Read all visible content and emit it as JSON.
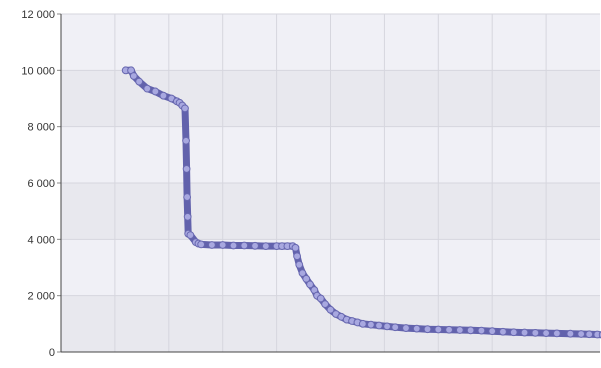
{
  "chart_data": {
    "type": "scatter",
    "title": "",
    "xlabel": "",
    "ylabel": "",
    "ylim": [
      0,
      12000
    ],
    "xlim": [
      0,
      10
    ],
    "y_ticks": [
      "0",
      "2 000",
      "4 000",
      "6 000",
      "8 000",
      "10 000",
      "12 000"
    ],
    "x_tick_labels": [],
    "grid": true,
    "legend": "none",
    "colors": {
      "plot_band_dark": "#e8e8ee",
      "plot_band_light": "#f0f0f6",
      "gridline": "#d6d6de",
      "point_fill": "#a8a8e0",
      "point_stroke": "#6868b0",
      "line": "#6262ac"
    },
    "series": [
      {
        "points": [
          [
            1.2,
            10000
          ],
          [
            1.3,
            10000
          ],
          [
            1.35,
            9800
          ],
          [
            1.45,
            9600
          ],
          [
            1.6,
            9350
          ],
          [
            1.75,
            9250
          ],
          [
            1.9,
            9100
          ],
          [
            2.05,
            9000
          ],
          [
            2.15,
            8900
          ],
          [
            2.2,
            8850
          ],
          [
            2.25,
            8750
          ],
          [
            2.3,
            8650
          ],
          [
            2.32,
            7500
          ],
          [
            2.33,
            6500
          ],
          [
            2.34,
            5500
          ],
          [
            2.35,
            4800
          ],
          [
            2.36,
            4200
          ],
          [
            2.4,
            4150
          ],
          [
            2.5,
            3900
          ],
          [
            2.55,
            3850
          ],
          [
            2.6,
            3820
          ],
          [
            2.8,
            3800
          ],
          [
            3.0,
            3800
          ],
          [
            3.2,
            3780
          ],
          [
            3.4,
            3780
          ],
          [
            3.6,
            3770
          ],
          [
            3.8,
            3760
          ],
          [
            4.0,
            3760
          ],
          [
            4.1,
            3760
          ],
          [
            4.2,
            3760
          ],
          [
            4.3,
            3760
          ],
          [
            4.35,
            3700
          ],
          [
            4.38,
            3400
          ],
          [
            4.42,
            3100
          ],
          [
            4.48,
            2800
          ],
          [
            4.55,
            2600
          ],
          [
            4.62,
            2400
          ],
          [
            4.7,
            2200
          ],
          [
            4.75,
            2000
          ],
          [
            4.82,
            1900
          ],
          [
            4.9,
            1700
          ],
          [
            5.0,
            1500
          ],
          [
            5.1,
            1350
          ],
          [
            5.2,
            1250
          ],
          [
            5.3,
            1150
          ],
          [
            5.4,
            1100
          ],
          [
            5.5,
            1050
          ],
          [
            5.6,
            1000
          ],
          [
            5.75,
            970
          ],
          [
            5.9,
            940
          ],
          [
            6.05,
            910
          ],
          [
            6.2,
            880
          ],
          [
            6.4,
            850
          ],
          [
            6.6,
            830
          ],
          [
            6.8,
            810
          ],
          [
            7.0,
            800
          ],
          [
            7.2,
            790
          ],
          [
            7.4,
            780
          ],
          [
            7.6,
            770
          ],
          [
            7.8,
            760
          ],
          [
            8.0,
            740
          ],
          [
            8.2,
            720
          ],
          [
            8.4,
            700
          ],
          [
            8.6,
            690
          ],
          [
            8.8,
            680
          ],
          [
            9.0,
            670
          ],
          [
            9.2,
            660
          ],
          [
            9.45,
            650
          ],
          [
            9.65,
            640
          ],
          [
            9.8,
            630
          ],
          [
            9.95,
            620
          ],
          [
            10.05,
            610
          ]
        ]
      }
    ]
  }
}
